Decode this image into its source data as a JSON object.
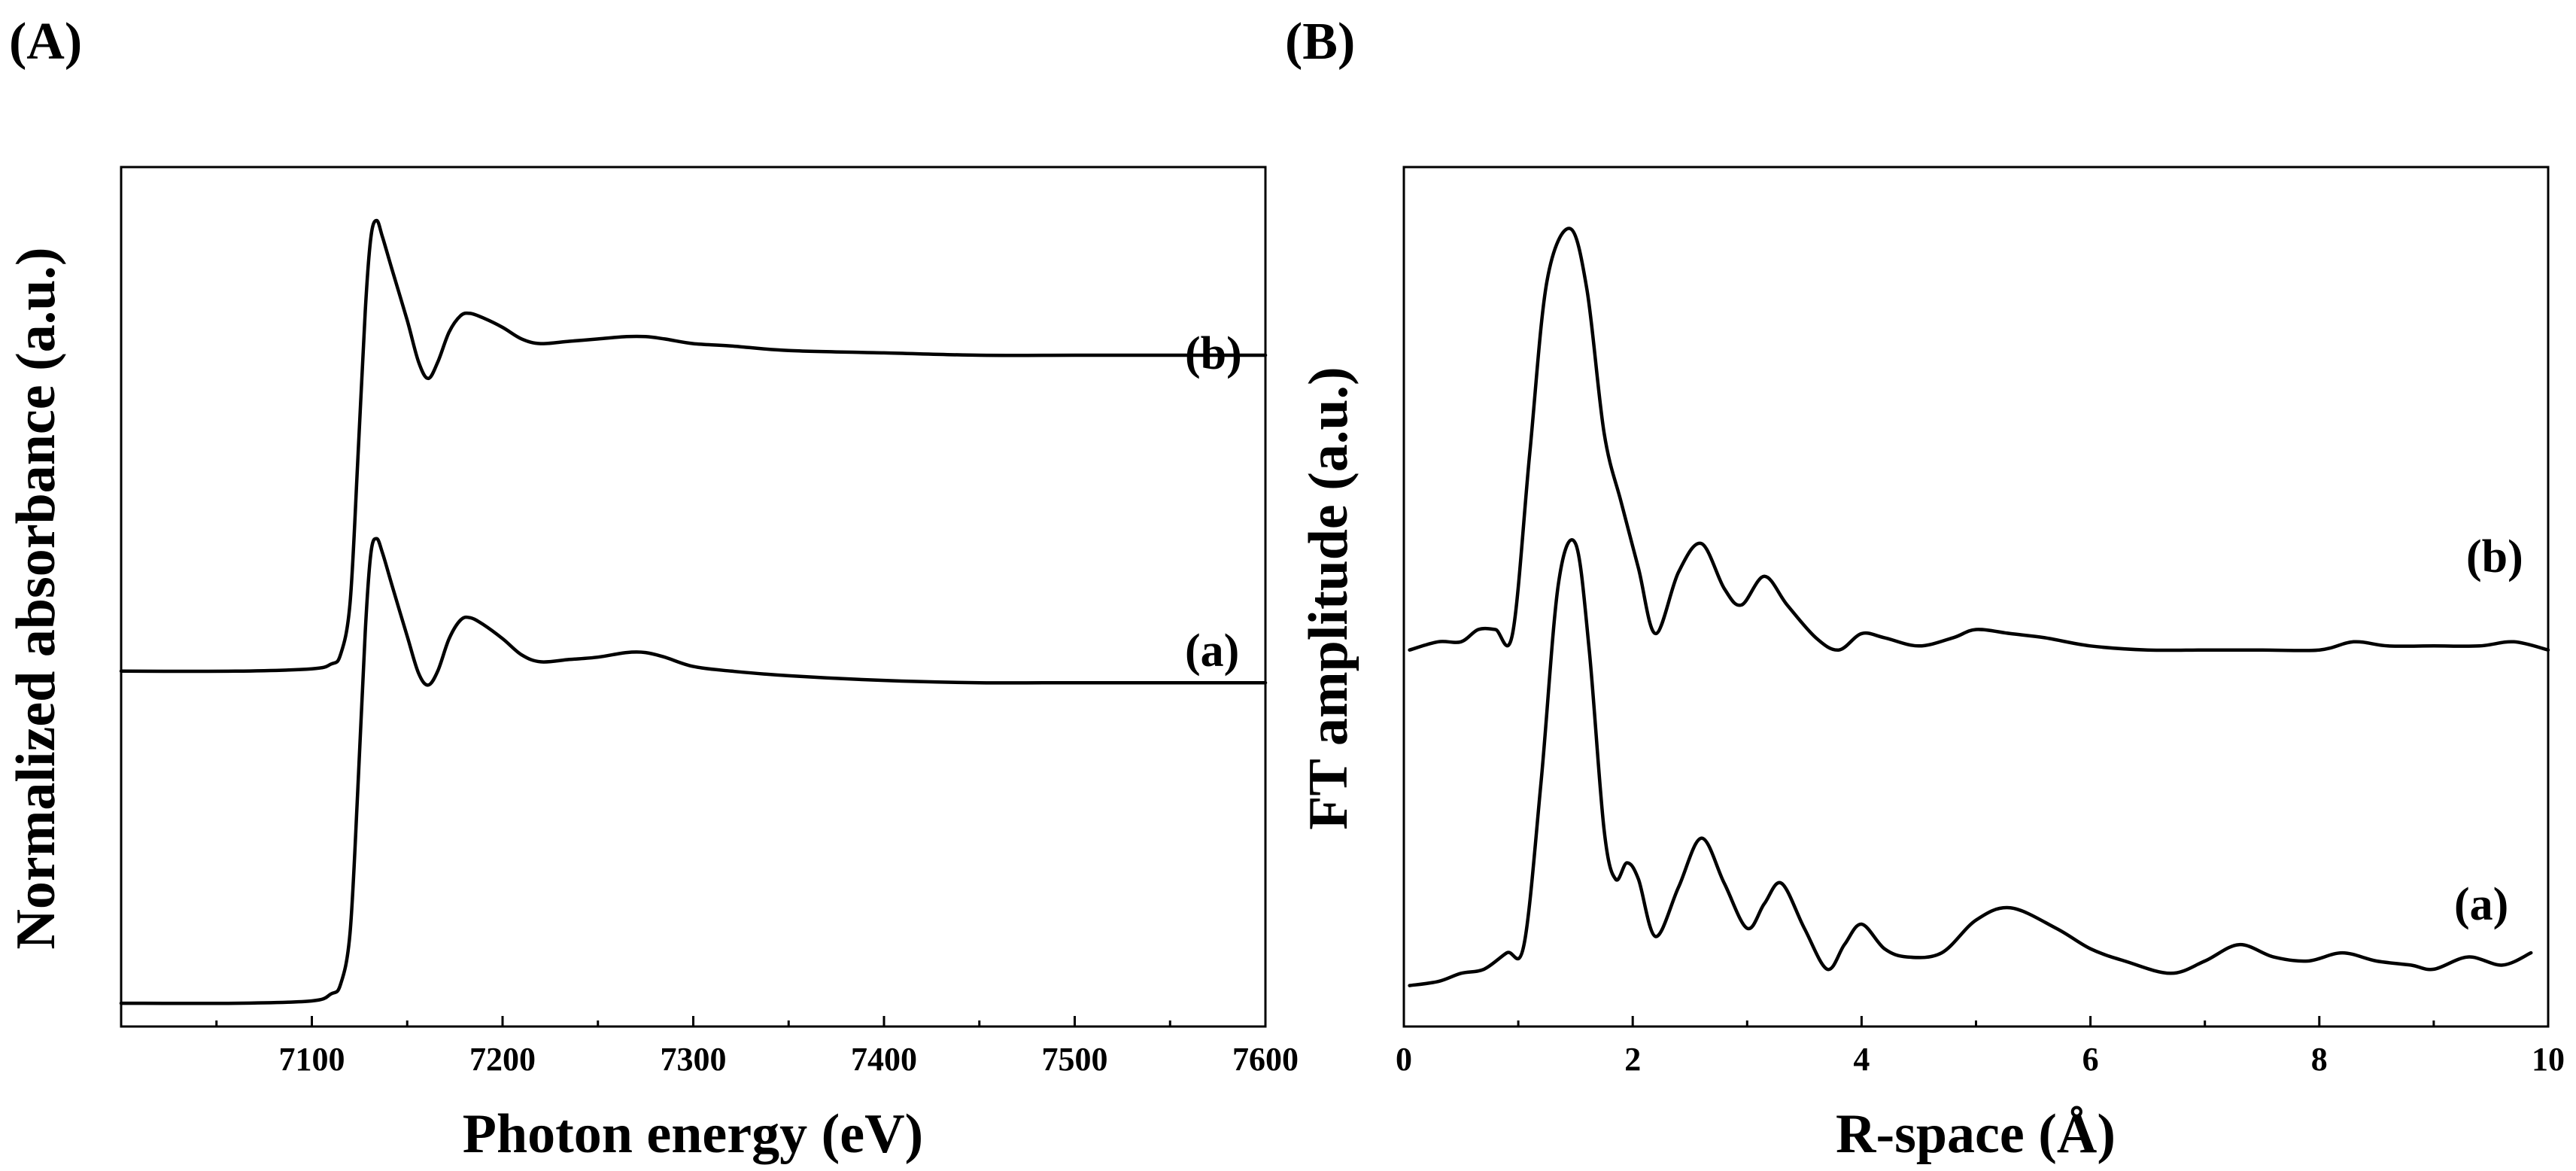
{
  "chart_data": [
    {
      "type": "line",
      "panel_label": "(A)",
      "title": "",
      "xlabel": "Photon energy (eV)",
      "ylabel": "Normalized absorbance (a.u.)",
      "xlim": [
        7000,
        7600
      ],
      "ylim": [
        -0.1,
        3.6
      ],
      "xticks": [
        7100,
        7200,
        7300,
        7400,
        7500,
        7600
      ],
      "xtick_labels": [
        "7100",
        "7200",
        "7300",
        "7400",
        "7500",
        "7600"
      ],
      "yticks_visible": false,
      "series": [
        {
          "name": "(a)",
          "points": [
            [
              7000,
              0.0
            ],
            [
              7060,
              0.0
            ],
            [
              7100,
              0.01
            ],
            [
              7110,
              0.04
            ],
            [
              7115,
              0.08
            ],
            [
              7120,
              0.3
            ],
            [
              7124,
              0.9
            ],
            [
              7128,
              1.6
            ],
            [
              7131,
              1.94
            ],
            [
              7134,
              2.0
            ],
            [
              7137,
              1.94
            ],
            [
              7142,
              1.8
            ],
            [
              7150,
              1.58
            ],
            [
              7156,
              1.42
            ],
            [
              7161,
              1.37
            ],
            [
              7166,
              1.43
            ],
            [
              7172,
              1.57
            ],
            [
              7178,
              1.65
            ],
            [
              7183,
              1.66
            ],
            [
              7190,
              1.63
            ],
            [
              7200,
              1.57
            ],
            [
              7210,
              1.5
            ],
            [
              7220,
              1.47
            ],
            [
              7235,
              1.48
            ],
            [
              7250,
              1.49
            ],
            [
              7265,
              1.51
            ],
            [
              7275,
              1.51
            ],
            [
              7285,
              1.49
            ],
            [
              7300,
              1.45
            ],
            [
              7320,
              1.43
            ],
            [
              7350,
              1.41
            ],
            [
              7400,
              1.39
            ],
            [
              7450,
              1.38
            ],
            [
              7500,
              1.38
            ],
            [
              7550,
              1.38
            ],
            [
              7600,
              1.38
            ]
          ]
        },
        {
          "name": "(b)",
          "points": [
            [
              7000,
              1.43
            ],
            [
              7060,
              1.43
            ],
            [
              7100,
              1.44
            ],
            [
              7110,
              1.46
            ],
            [
              7115,
              1.5
            ],
            [
              7120,
              1.72
            ],
            [
              7124,
              2.32
            ],
            [
              7128,
              2.98
            ],
            [
              7131,
              3.3
            ],
            [
              7134,
              3.37
            ],
            [
              7137,
              3.3
            ],
            [
              7142,
              3.16
            ],
            [
              7150,
              2.94
            ],
            [
              7156,
              2.76
            ],
            [
              7161,
              2.69
            ],
            [
              7166,
              2.76
            ],
            [
              7172,
              2.89
            ],
            [
              7178,
              2.96
            ],
            [
              7183,
              2.97
            ],
            [
              7190,
              2.95
            ],
            [
              7200,
              2.91
            ],
            [
              7210,
              2.86
            ],
            [
              7220,
              2.84
            ],
            [
              7235,
              2.85
            ],
            [
              7250,
              2.86
            ],
            [
              7265,
              2.87
            ],
            [
              7275,
              2.87
            ],
            [
              7285,
              2.86
            ],
            [
              7300,
              2.84
            ],
            [
              7320,
              2.83
            ],
            [
              7350,
              2.81
            ],
            [
              7400,
              2.8
            ],
            [
              7450,
              2.79
            ],
            [
              7500,
              2.79
            ],
            [
              7550,
              2.79
            ],
            [
              7600,
              2.79
            ]
          ]
        }
      ]
    },
    {
      "type": "line",
      "panel_label": "(B)",
      "title": "",
      "xlabel": "R-space (Å)",
      "ylabel": "FT amplitude (a.u.)",
      "xlim": [
        0,
        10
      ],
      "ylim": [
        -0.1,
        2.0
      ],
      "xticks": [
        0,
        2,
        4,
        6,
        8,
        10
      ],
      "xtick_labels": [
        "0",
        "2",
        "4",
        "6",
        "8",
        "10"
      ],
      "yticks_visible": false,
      "series": [
        {
          "name": "(a)",
          "points": [
            [
              0.05,
              0.0
            ],
            [
              0.3,
              0.01
            ],
            [
              0.5,
              0.03
            ],
            [
              0.7,
              0.04
            ],
            [
              0.9,
              0.08
            ],
            [
              1.05,
              0.1
            ],
            [
              1.2,
              0.5
            ],
            [
              1.35,
              0.98
            ],
            [
              1.5,
              1.08
            ],
            [
              1.62,
              0.82
            ],
            [
              1.75,
              0.38
            ],
            [
              1.85,
              0.26
            ],
            [
              1.95,
              0.3
            ],
            [
              2.05,
              0.26
            ],
            [
              2.2,
              0.12
            ],
            [
              2.4,
              0.24
            ],
            [
              2.6,
              0.36
            ],
            [
              2.8,
              0.25
            ],
            [
              3.0,
              0.14
            ],
            [
              3.15,
              0.2
            ],
            [
              3.3,
              0.25
            ],
            [
              3.5,
              0.14
            ],
            [
              3.7,
              0.04
            ],
            [
              3.85,
              0.1
            ],
            [
              4.0,
              0.15
            ],
            [
              4.2,
              0.09
            ],
            [
              4.4,
              0.07
            ],
            [
              4.7,
              0.08
            ],
            [
              5.0,
              0.16
            ],
            [
              5.3,
              0.19
            ],
            [
              5.7,
              0.14
            ],
            [
              6.0,
              0.09
            ],
            [
              6.3,
              0.06
            ],
            [
              6.7,
              0.03
            ],
            [
              7.0,
              0.06
            ],
            [
              7.3,
              0.1
            ],
            [
              7.6,
              0.07
            ],
            [
              7.9,
              0.06
            ],
            [
              8.2,
              0.08
            ],
            [
              8.5,
              0.06
            ],
            [
              8.8,
              0.05
            ],
            [
              9.0,
              0.04
            ],
            [
              9.3,
              0.07
            ],
            [
              9.6,
              0.05
            ],
            [
              9.85,
              0.08
            ]
          ]
        },
        {
          "name": "(b)",
          "points": [
            [
              0.05,
              0.82
            ],
            [
              0.3,
              0.84
            ],
            [
              0.5,
              0.84
            ],
            [
              0.65,
              0.87
            ],
            [
              0.8,
              0.87
            ],
            [
              0.95,
              0.86
            ],
            [
              1.1,
              1.3
            ],
            [
              1.25,
              1.72
            ],
            [
              1.45,
              1.85
            ],
            [
              1.6,
              1.7
            ],
            [
              1.75,
              1.35
            ],
            [
              1.9,
              1.18
            ],
            [
              2.05,
              1.02
            ],
            [
              2.2,
              0.86
            ],
            [
              2.4,
              1.01
            ],
            [
              2.6,
              1.08
            ],
            [
              2.8,
              0.97
            ],
            [
              2.95,
              0.93
            ],
            [
              3.15,
              1.0
            ],
            [
              3.35,
              0.93
            ],
            [
              3.6,
              0.85
            ],
            [
              3.8,
              0.82
            ],
            [
              4.0,
              0.86
            ],
            [
              4.2,
              0.85
            ],
            [
              4.5,
              0.83
            ],
            [
              4.8,
              0.85
            ],
            [
              5.0,
              0.87
            ],
            [
              5.3,
              0.86
            ],
            [
              5.6,
              0.85
            ],
            [
              6.0,
              0.83
            ],
            [
              6.5,
              0.82
            ],
            [
              7.0,
              0.82
            ],
            [
              7.5,
              0.82
            ],
            [
              8.0,
              0.82
            ],
            [
              8.3,
              0.84
            ],
            [
              8.6,
              0.83
            ],
            [
              9.0,
              0.83
            ],
            [
              9.4,
              0.83
            ],
            [
              9.7,
              0.84
            ],
            [
              10.0,
              0.82
            ]
          ]
        }
      ]
    }
  ]
}
